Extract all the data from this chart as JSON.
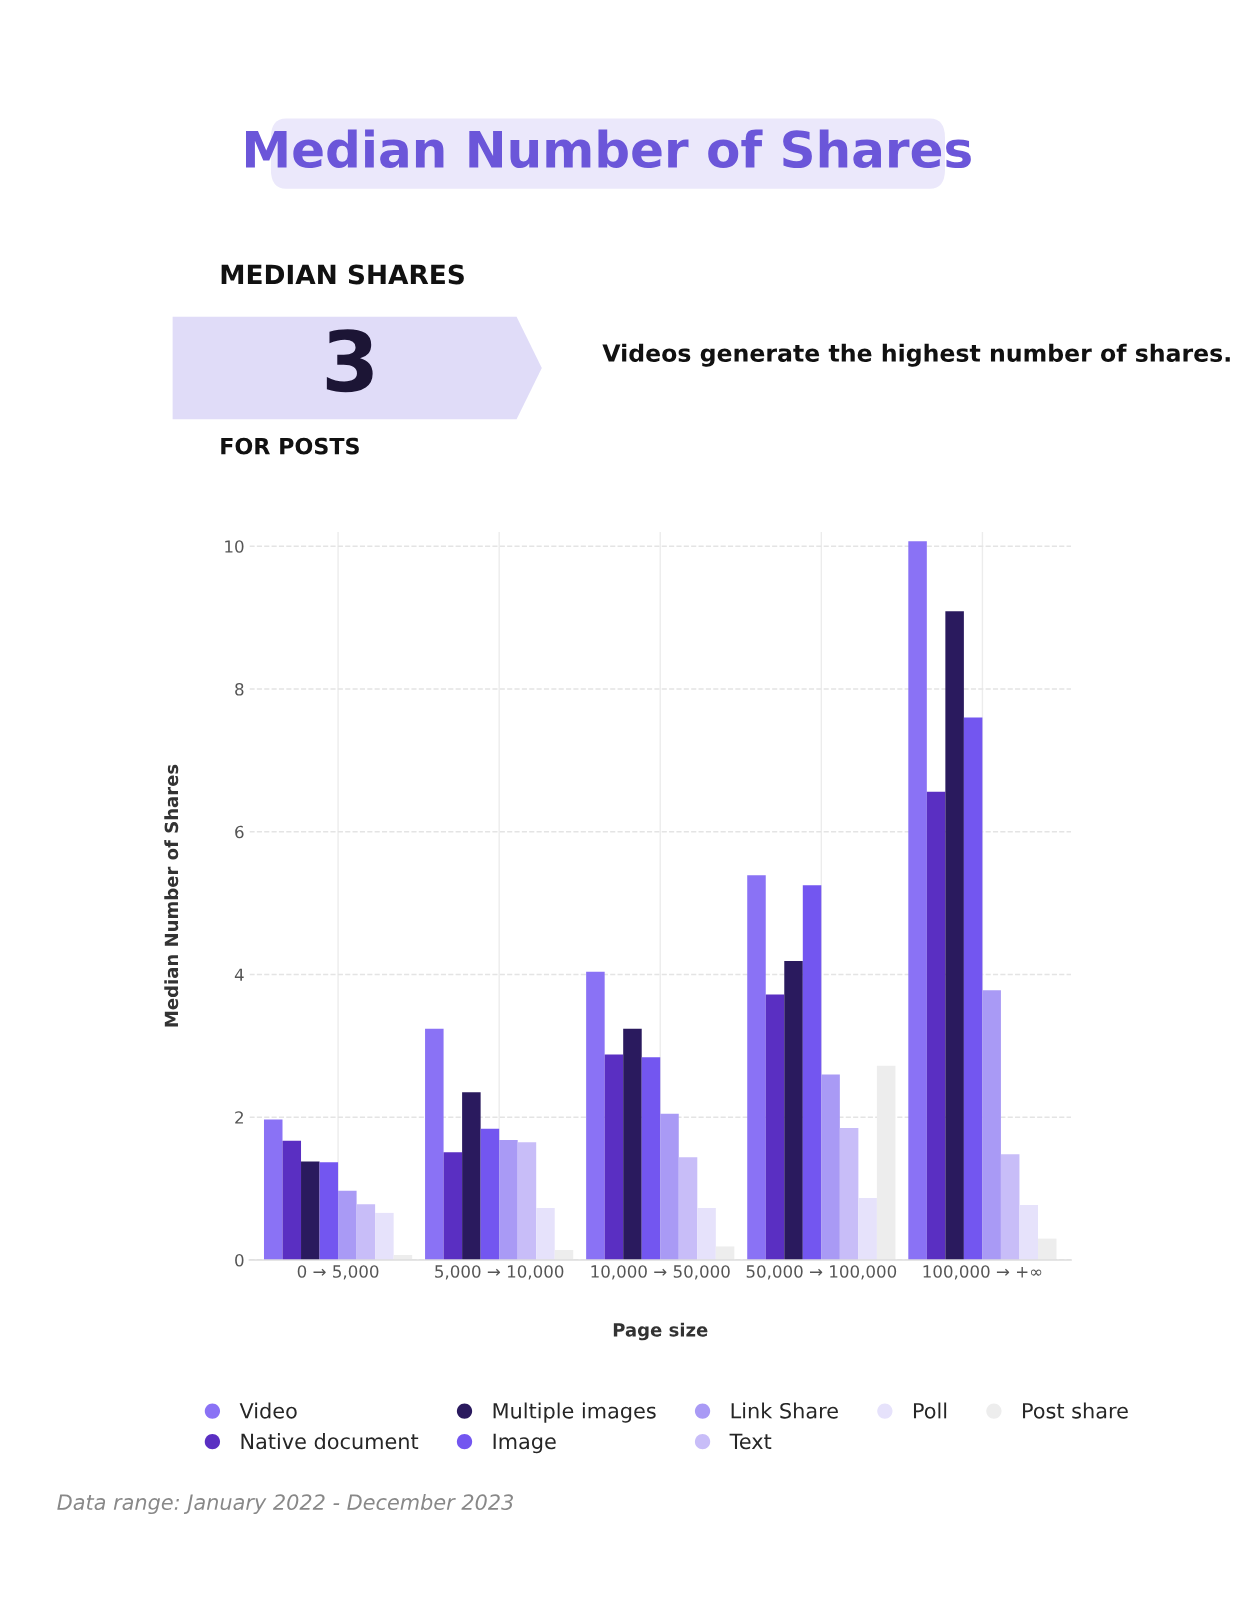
{
  "chart_data": {
    "type": "bar",
    "title": "Median Number of Shares",
    "xlabel": "Page size",
    "ylabel": "Median Number of Shares",
    "categories": [
      "0 → 5,000",
      "5,000 → 10,000",
      "10,000 → 50,000",
      "50,000 → 100,000",
      "100,000 → +∞"
    ],
    "series": [
      {
        "name": "Video",
        "color": "#8a72f5",
        "values": [
          1.97,
          3.24,
          4.04,
          5.39,
          10.07
        ]
      },
      {
        "name": "Native document",
        "color": "#5a2fc2",
        "values": [
          1.67,
          1.51,
          2.88,
          3.72,
          6.56
        ]
      },
      {
        "name": "Multiple images",
        "color": "#2a1a5e",
        "values": [
          1.38,
          2.35,
          3.24,
          4.19,
          9.09
        ]
      },
      {
        "name": "Image",
        "color": "#7356f0",
        "values": [
          1.37,
          1.84,
          2.84,
          5.25,
          7.6
        ]
      },
      {
        "name": "Link Share",
        "color": "#a99af5",
        "values": [
          0.97,
          1.68,
          2.05,
          2.6,
          3.78
        ]
      },
      {
        "name": "Text",
        "color": "#c8bdf8",
        "values": [
          0.78,
          1.65,
          1.44,
          1.85,
          1.48
        ]
      },
      {
        "name": "Poll",
        "color": "#e6e2fb",
        "values": [
          0.66,
          0.73,
          0.73,
          0.87,
          0.77
        ]
      },
      {
        "name": "Post share",
        "color": "#ededed",
        "values": [
          0.07,
          0.14,
          0.19,
          2.72,
          0.3
        ]
      }
    ],
    "ylim": [
      0,
      10.2
    ],
    "yticks": [
      0,
      2,
      4,
      6,
      8,
      10
    ],
    "grid": true,
    "legend": "bottom",
    "annotations": [
      "MEDIAN SHARES",
      "3",
      "FOR POSTS",
      "Videos generate the highest number of shares.",
      "Data range: January 2022 - December 2023"
    ]
  }
}
